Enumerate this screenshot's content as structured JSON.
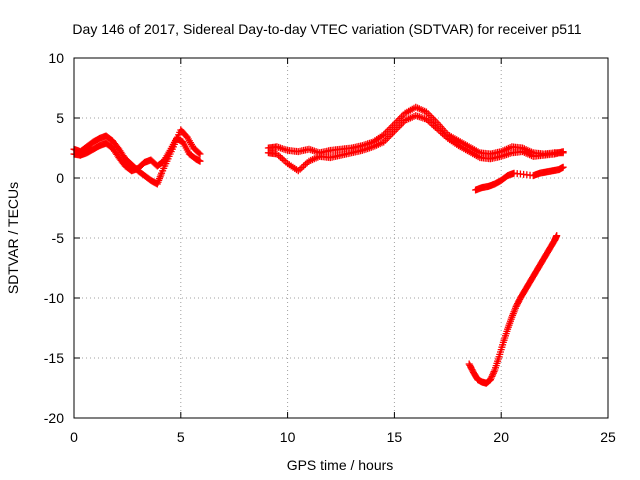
{
  "chart_data": {
    "type": "scatter",
    "title": "Day 146 of 2017, Sidereal Day-to-day VTEC variation (SDTVAR) for receiver p511",
    "xlabel": "GPS time / hours",
    "ylabel": "SDTVAR / TECUs",
    "xlim": [
      0,
      25
    ],
    "ylim": [
      -20,
      10
    ],
    "xticks": [
      0,
      5,
      10,
      15,
      20,
      25
    ],
    "yticks": [
      -20,
      -15,
      -10,
      -5,
      0,
      5,
      10
    ],
    "xtick_labels": [
      "0",
      "5",
      "10",
      "15",
      "20",
      "25"
    ],
    "ytick_labels": [
      "-20",
      "-15",
      "-10",
      "-5",
      "0",
      "5",
      "10"
    ],
    "grid": true,
    "marker": "+",
    "color": "#ff0000",
    "series": [
      {
        "name": "segment-early-morning",
        "x": [
          0.0,
          0.3,
          0.6,
          0.9,
          1.2,
          1.5,
          1.8,
          2.1,
          2.4,
          2.7,
          3.0,
          3.3,
          3.6,
          3.9,
          4.1,
          4.4,
          4.7,
          5.0,
          5.3,
          5.6,
          5.9
        ],
        "y": [
          2.4,
          2.2,
          2.6,
          3.0,
          3.3,
          3.5,
          3.1,
          2.4,
          1.6,
          1.1,
          0.6,
          0.2,
          -0.2,
          -0.5,
          0.4,
          1.6,
          2.8,
          4.0,
          3.4,
          2.5,
          2.0
        ]
      },
      {
        "name": "segment-early-morning-2",
        "x": [
          0.0,
          0.3,
          0.6,
          0.9,
          1.2,
          1.5,
          1.8,
          2.1,
          2.4,
          2.7,
          3.0,
          3.3,
          3.6,
          3.9,
          4.2,
          4.5,
          4.8,
          5.1,
          5.4,
          5.7,
          5.9
        ],
        "y": [
          2.0,
          1.9,
          2.1,
          2.4,
          2.7,
          2.9,
          2.5,
          1.7,
          1.0,
          0.6,
          0.8,
          1.3,
          1.5,
          1.0,
          1.4,
          2.3,
          3.3,
          3.0,
          2.0,
          1.6,
          1.4
        ]
      },
      {
        "name": "segment-daytime-main",
        "x": [
          9.1,
          9.5,
          10.0,
          10.5,
          11.0,
          11.5,
          12.0,
          12.5,
          13.0,
          13.5,
          14.0,
          14.5,
          15.0,
          15.5,
          16.0,
          16.5,
          17.0,
          17.5,
          18.0,
          18.5,
          19.0,
          19.5,
          20.0,
          20.5,
          21.0,
          21.5,
          22.0,
          22.5,
          22.9
        ],
        "y": [
          2.5,
          2.6,
          2.3,
          2.2,
          2.4,
          2.1,
          2.3,
          2.4,
          2.5,
          2.7,
          3.0,
          3.6,
          4.5,
          5.4,
          5.9,
          5.5,
          4.6,
          3.6,
          3.1,
          2.6,
          2.1,
          2.0,
          2.2,
          2.6,
          2.5,
          2.1,
          2.0,
          2.1,
          2.1
        ]
      },
      {
        "name": "segment-daytime-secondary",
        "x": [
          9.1,
          9.5,
          10.0,
          10.5,
          11.0,
          11.5,
          12.0,
          12.5,
          13.0,
          13.5,
          14.0,
          14.5,
          15.0,
          15.5,
          16.0,
          16.5,
          17.0,
          17.5,
          18.0,
          18.5,
          19.0,
          19.5,
          20.0,
          20.5,
          21.0,
          21.5,
          22.0,
          22.5,
          22.9
        ],
        "y": [
          2.1,
          2.0,
          1.2,
          0.6,
          1.4,
          1.8,
          1.7,
          1.9,
          2.1,
          2.3,
          2.6,
          3.0,
          3.9,
          4.8,
          5.2,
          4.9,
          4.1,
          3.3,
          2.7,
          2.2,
          1.7,
          1.6,
          1.8,
          2.1,
          2.2,
          1.8,
          1.9,
          2.0,
          2.2
        ]
      },
      {
        "name": "segment-late-low",
        "x": [
          18.8,
          19.1,
          19.4,
          19.7,
          20.0,
          20.3,
          20.6,
          21.5,
          21.8,
          22.1,
          22.4,
          22.7,
          22.9
        ],
        "y": [
          -1.0,
          -0.8,
          -0.7,
          -0.5,
          -0.2,
          0.2,
          0.4,
          0.2,
          0.4,
          0.5,
          0.6,
          0.7,
          0.9
        ]
      },
      {
        "name": "segment-dip",
        "x": [
          18.5,
          18.7,
          18.9,
          19.1,
          19.3,
          19.5,
          19.7,
          19.9,
          20.1,
          20.3,
          20.5,
          20.7,
          20.9,
          21.1,
          21.3,
          21.5,
          21.7,
          21.9,
          22.1,
          22.3,
          22.5,
          22.6
        ],
        "y": [
          -15.5,
          -16.2,
          -16.8,
          -17.0,
          -17.1,
          -16.8,
          -16.0,
          -14.9,
          -13.7,
          -12.6,
          -11.6,
          -10.7,
          -10.0,
          -9.4,
          -8.8,
          -8.2,
          -7.6,
          -7.0,
          -6.4,
          -5.8,
          -5.2,
          -4.8
        ]
      }
    ]
  }
}
